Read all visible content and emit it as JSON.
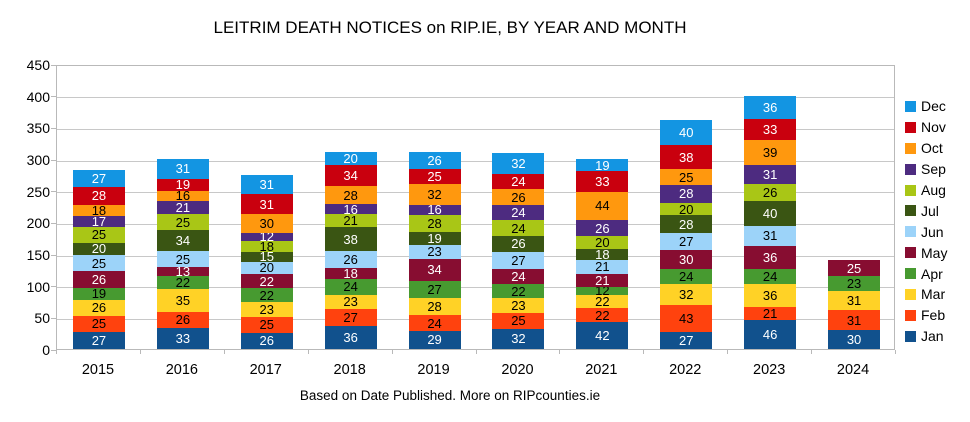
{
  "title": "LEITRIM DEATH NOTICES on RIP.IE, BY YEAR AND MONTH",
  "footer": "Based on Date Published. More on RIPcounties.ie",
  "chart_data": {
    "type": "bar",
    "stacked": true,
    "title": "LEITRIM DEATH NOTICES on RIP.IE, BY YEAR AND MONTH",
    "xlabel": "",
    "ylabel": "",
    "ylim": [
      0,
      450
    ],
    "ytick_step": 50,
    "grid": true,
    "legend_position": "right",
    "legend_order_top_to_bottom": [
      "Dec",
      "Nov",
      "Oct",
      "Sep",
      "Aug",
      "Jul",
      "Jun",
      "May",
      "Apr",
      "Mar",
      "Feb",
      "Jan"
    ],
    "categories": [
      "2015",
      "2016",
      "2017",
      "2018",
      "2019",
      "2020",
      "2021",
      "2022",
      "2023",
      "2024"
    ],
    "series": [
      {
        "name": "Jan",
        "color": "#11518D",
        "label_color": "#ffffff",
        "values": [
          27,
          33,
          26,
          36,
          29,
          32,
          42,
          27,
          46,
          30
        ]
      },
      {
        "name": "Feb",
        "color": "#FF420E",
        "label_color": "#000000",
        "values": [
          25,
          26,
          25,
          27,
          24,
          25,
          22,
          43,
          21,
          31
        ]
      },
      {
        "name": "Mar",
        "color": "#FFD226",
        "label_color": "#000000",
        "values": [
          26,
          35,
          23,
          23,
          28,
          23,
          22,
          32,
          36,
          31
        ]
      },
      {
        "name": "Apr",
        "color": "#479A30",
        "label_color": "#000000",
        "values": [
          19,
          22,
          22,
          24,
          27,
          22,
          12,
          24,
          24,
          23
        ]
      },
      {
        "name": "May",
        "color": "#870D31",
        "label_color": "#ffffff",
        "values": [
          26,
          13,
          22,
          18,
          34,
          24,
          21,
          30,
          36,
          25
        ]
      },
      {
        "name": "Jun",
        "color": "#9CD3F9",
        "label_color": "#000000",
        "values": [
          25,
          25,
          20,
          26,
          23,
          27,
          21,
          27,
          31,
          0
        ]
      },
      {
        "name": "Jul",
        "color": "#3A5513",
        "label_color": "#ffffff",
        "values": [
          20,
          34,
          15,
          38,
          19,
          26,
          18,
          28,
          40,
          0
        ]
      },
      {
        "name": "Aug",
        "color": "#A9C616",
        "label_color": "#000000",
        "values": [
          25,
          25,
          18,
          21,
          28,
          24,
          20,
          20,
          26,
          0
        ]
      },
      {
        "name": "Sep",
        "color": "#4D2B80",
        "label_color": "#ffffff",
        "values": [
          17,
          21,
          12,
          16,
          16,
          24,
          26,
          28,
          31,
          0
        ]
      },
      {
        "name": "Oct",
        "color": "#FF980E",
        "label_color": "#000000",
        "values": [
          18,
          16,
          30,
          28,
          32,
          26,
          44,
          25,
          39,
          0
        ]
      },
      {
        "name": "Nov",
        "color": "#C9000E",
        "label_color": "#ffffff",
        "values": [
          28,
          19,
          31,
          34,
          25,
          24,
          33,
          38,
          33,
          0
        ]
      },
      {
        "name": "Dec",
        "color": "#1395E2",
        "label_color": "#ffffff",
        "values": [
          27,
          31,
          31,
          20,
          26,
          32,
          19,
          40,
          36,
          0
        ]
      }
    ]
  }
}
